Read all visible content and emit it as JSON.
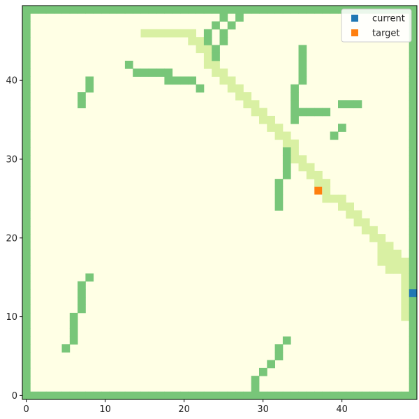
{
  "chart_data": {
    "type": "heatmap",
    "title": "",
    "xlabel": "",
    "ylabel": "",
    "xlim": [
      -0.5,
      49.5
    ],
    "ylim": [
      -0.5,
      49.5
    ],
    "grid": false,
    "legend_placement": "top-right",
    "x_ticks": [
      0,
      10,
      20,
      30,
      40
    ],
    "y_ticks": [
      0,
      10,
      20,
      30,
      40
    ],
    "x_tick_labels": [
      "0",
      "10",
      "20",
      "30",
      "40"
    ],
    "y_tick_labels": [
      "0",
      "10",
      "20",
      "30",
      "40"
    ],
    "colors": {
      "free": "#ffffe5",
      "obstacle": "#78c679",
      "path": "#d9f0a3",
      "current": "#1f77b4",
      "target": "#ff7f0e"
    },
    "border_cells": "all cells with x in {0,49} or y in {0,49} are obstacles",
    "obstacles": [
      [
        25,
        48
      ],
      [
        27,
        48
      ],
      [
        24,
        47
      ],
      [
        26,
        47
      ],
      [
        23,
        46
      ],
      [
        25,
        46
      ],
      [
        23,
        45
      ],
      [
        25,
        45
      ],
      [
        24,
        44
      ],
      [
        24,
        43
      ],
      [
        35,
        44
      ],
      [
        35,
        43
      ],
      [
        35,
        42
      ],
      [
        35,
        41
      ],
      [
        35,
        40
      ],
      [
        13,
        42
      ],
      [
        14,
        41
      ],
      [
        15,
        41
      ],
      [
        16,
        41
      ],
      [
        17,
        41
      ],
      [
        18,
        41
      ],
      [
        8,
        40
      ],
      [
        18,
        40
      ],
      [
        19,
        40
      ],
      [
        20,
        40
      ],
      [
        21,
        40
      ],
      [
        8,
        39
      ],
      [
        22,
        39
      ],
      [
        34,
        39
      ],
      [
        7,
        38
      ],
      [
        34,
        38
      ],
      [
        7,
        37
      ],
      [
        34,
        37
      ],
      [
        40,
        37
      ],
      [
        41,
        37
      ],
      [
        42,
        37
      ],
      [
        34,
        36
      ],
      [
        35,
        36
      ],
      [
        36,
        36
      ],
      [
        37,
        36
      ],
      [
        38,
        36
      ],
      [
        34,
        35
      ],
      [
        40,
        34
      ],
      [
        39,
        33
      ],
      [
        33,
        31
      ],
      [
        33,
        30
      ],
      [
        33,
        29
      ],
      [
        33,
        28
      ],
      [
        32,
        27
      ],
      [
        32,
        26
      ],
      [
        32,
        25
      ],
      [
        32,
        24
      ],
      [
        8,
        15
      ],
      [
        7,
        14
      ],
      [
        7,
        13
      ],
      [
        7,
        12
      ],
      [
        7,
        11
      ],
      [
        6,
        10
      ],
      [
        6,
        9
      ],
      [
        6,
        8
      ],
      [
        6,
        7
      ],
      [
        5,
        6
      ],
      [
        33,
        7
      ],
      [
        32,
        6
      ],
      [
        32,
        5
      ],
      [
        31,
        4
      ],
      [
        30,
        3
      ],
      [
        29,
        2
      ],
      [
        29,
        1
      ]
    ],
    "path": [
      [
        15,
        46
      ],
      [
        16,
        46
      ],
      [
        17,
        46
      ],
      [
        18,
        46
      ],
      [
        19,
        46
      ],
      [
        20,
        46
      ],
      [
        21,
        46
      ],
      [
        21,
        45
      ],
      [
        22,
        45
      ],
      [
        22,
        44
      ],
      [
        23,
        44
      ],
      [
        23,
        43
      ],
      [
        23,
        42
      ],
      [
        24,
        42
      ],
      [
        24,
        41
      ],
      [
        25,
        41
      ],
      [
        25,
        40
      ],
      [
        26,
        40
      ],
      [
        26,
        39
      ],
      [
        27,
        39
      ],
      [
        27,
        38
      ],
      [
        28,
        38
      ],
      [
        28,
        37
      ],
      [
        29,
        37
      ],
      [
        29,
        36
      ],
      [
        30,
        36
      ],
      [
        30,
        35
      ],
      [
        31,
        35
      ],
      [
        31,
        34
      ],
      [
        32,
        34
      ],
      [
        32,
        33
      ],
      [
        33,
        33
      ],
      [
        33,
        32
      ],
      [
        34,
        32
      ],
      [
        34,
        31
      ],
      [
        34,
        30
      ],
      [
        35,
        30
      ],
      [
        35,
        29
      ],
      [
        36,
        29
      ],
      [
        36,
        28
      ],
      [
        37,
        28
      ],
      [
        37,
        27
      ],
      [
        38,
        27
      ],
      [
        38,
        26
      ],
      [
        38,
        25
      ],
      [
        39,
        25
      ],
      [
        40,
        25
      ],
      [
        40,
        24
      ],
      [
        41,
        24
      ],
      [
        41,
        23
      ],
      [
        42,
        23
      ],
      [
        42,
        22
      ],
      [
        43,
        22
      ],
      [
        43,
        21
      ],
      [
        44,
        21
      ],
      [
        44,
        20
      ],
      [
        45,
        20
      ],
      [
        45,
        19
      ],
      [
        46,
        19
      ],
      [
        45,
        18
      ],
      [
        46,
        18
      ],
      [
        47,
        18
      ],
      [
        45,
        17
      ],
      [
        46,
        17
      ],
      [
        47,
        17
      ],
      [
        48,
        17
      ],
      [
        46,
        16
      ],
      [
        47,
        16
      ],
      [
        48,
        16
      ],
      [
        48,
        15
      ],
      [
        48,
        14
      ],
      [
        48,
        13
      ],
      [
        48,
        12
      ],
      [
        48,
        11
      ],
      [
        48,
        10
      ]
    ],
    "current": [
      49,
      13
    ],
    "target": [
      37,
      26
    ],
    "series": [
      {
        "name": "current",
        "color": "#1f77b4",
        "x": [
          49
        ],
        "y": [
          13
        ]
      },
      {
        "name": "target",
        "color": "#ff7f0e",
        "x": [
          37
        ],
        "y": [
          26
        ]
      }
    ]
  }
}
